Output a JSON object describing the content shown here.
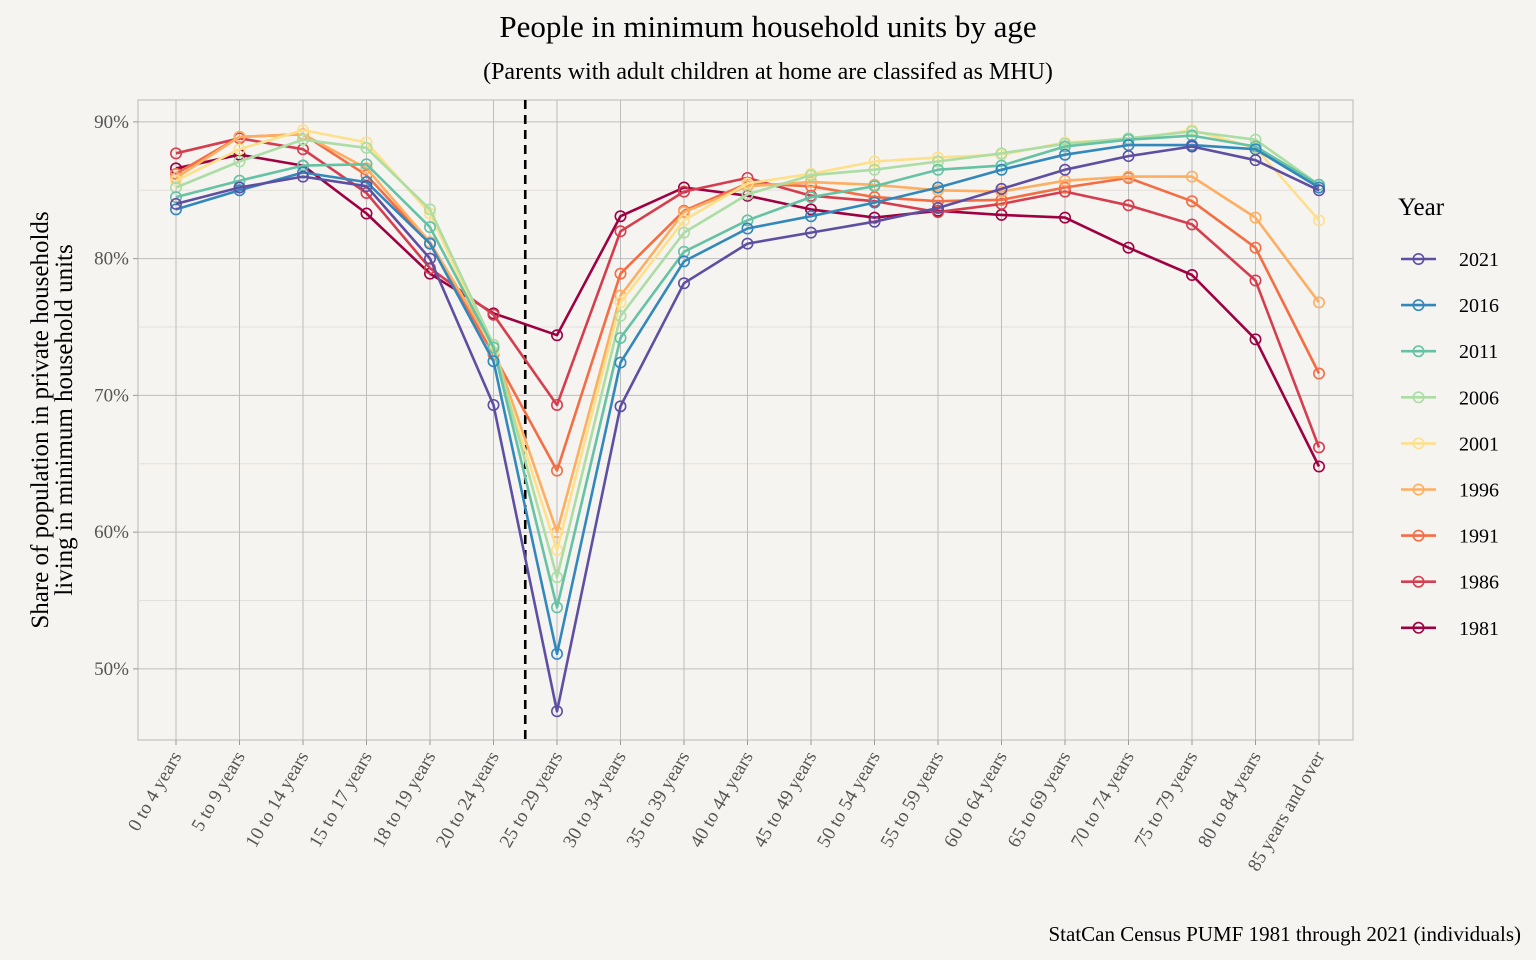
{
  "chart_data": {
    "type": "line",
    "title": "People in minimum household units by age",
    "subtitle": "(Parents with adult children at home are classifed as MHU)",
    "ylabel_line1": "Share of population in private households",
    "ylabel_line2": "living in minimum household units",
    "xlabel": "",
    "caption": "StatCan Census PUMF 1981 through 2021 (individuals)",
    "legend_title": "Year",
    "legend_position": "right",
    "grid": true,
    "ylim": [
      0.448,
      0.916
    ],
    "yticks": [
      0.5,
      0.6,
      0.7,
      0.8,
      0.9
    ],
    "ytick_labels": [
      "50%",
      "60%",
      "70%",
      "80%",
      "90%"
    ],
    "reference_line": {
      "style": "dashed",
      "between": [
        "20 to 24 years",
        "25 to 29 years"
      ]
    },
    "categories": [
      "0 to 4 years",
      "5 to 9 years",
      "10 to 14 years",
      "15 to 17 years",
      "18 to 19 years",
      "20 to 24 years",
      "25 to 29 years",
      "30 to 34 years",
      "35 to 39 years",
      "40 to 44 years",
      "45 to 49 years",
      "50 to 54 years",
      "55 to 59 years",
      "60 to 64 years",
      "65 to 69 years",
      "70 to 74 years",
      "75 to 79 years",
      "80 to 84 years",
      "85 years and over"
    ],
    "series": [
      {
        "name": "2021",
        "color": "#5e4fa2",
        "values": [
          0.84,
          0.852,
          0.86,
          0.853,
          0.8,
          0.693,
          0.469,
          0.692,
          0.782,
          0.811,
          0.819,
          0.827,
          0.837,
          0.851,
          0.865,
          0.875,
          0.882,
          0.872,
          0.85
        ]
      },
      {
        "name": "2016",
        "color": "#3288bd",
        "values": [
          0.836,
          0.85,
          0.863,
          0.856,
          0.811,
          0.725,
          0.511,
          0.724,
          0.798,
          0.822,
          0.831,
          0.841,
          0.852,
          0.865,
          0.876,
          0.883,
          0.883,
          0.88,
          0.852
        ]
      },
      {
        "name": "2011",
        "color": "#66c2a5",
        "values": [
          0.845,
          0.857,
          0.868,
          0.869,
          0.823,
          0.735,
          0.545,
          0.742,
          0.805,
          0.828,
          0.845,
          0.853,
          0.865,
          0.868,
          0.882,
          0.887,
          0.89,
          0.882,
          0.854
        ]
      },
      {
        "name": "2006",
        "color": "#abdda4",
        "values": [
          0.852,
          0.871,
          0.887,
          0.881,
          0.836,
          0.737,
          0.567,
          0.758,
          0.819,
          0.847,
          0.861,
          0.865,
          0.871,
          0.877,
          0.884,
          0.888,
          0.893,
          0.887,
          0.854
        ]
      },
      {
        "name": "2001",
        "color": "#fee08b",
        "values": [
          0.857,
          0.88,
          0.894,
          0.885,
          0.833,
          0.732,
          0.587,
          0.768,
          0.828,
          0.855,
          0.862,
          0.871,
          0.874,
          0.876,
          0.885,
          0.887,
          0.894,
          0.881,
          0.828
        ]
      },
      {
        "name": "1996",
        "color": "#fdae61",
        "values": [
          0.859,
          0.889,
          0.891,
          0.866,
          0.812,
          0.735,
          0.6,
          0.773,
          0.834,
          0.853,
          0.856,
          0.854,
          0.85,
          0.849,
          0.857,
          0.86,
          0.86,
          0.83,
          0.768
        ]
      },
      {
        "name": "1991",
        "color": "#f46d43",
        "values": [
          0.862,
          0.889,
          0.891,
          0.861,
          0.811,
          0.73,
          0.645,
          0.789,
          0.835,
          0.855,
          0.853,
          0.845,
          0.842,
          0.843,
          0.852,
          0.859,
          0.842,
          0.808,
          0.716
        ]
      },
      {
        "name": "1986",
        "color": "#d53e4f",
        "values": [
          0.877,
          0.888,
          0.88,
          0.848,
          0.793,
          0.759,
          0.693,
          0.82,
          0.849,
          0.859,
          0.846,
          0.842,
          0.834,
          0.84,
          0.849,
          0.839,
          0.825,
          0.784,
          0.662
        ]
      },
      {
        "name": "1981",
        "color": "#9e0142",
        "values": [
          0.866,
          0.876,
          0.868,
          0.833,
          0.789,
          0.76,
          0.744,
          0.831,
          0.852,
          0.846,
          0.836,
          0.83,
          0.835,
          0.832,
          0.83,
          0.808,
          0.788,
          0.741,
          0.648
        ]
      }
    ]
  }
}
